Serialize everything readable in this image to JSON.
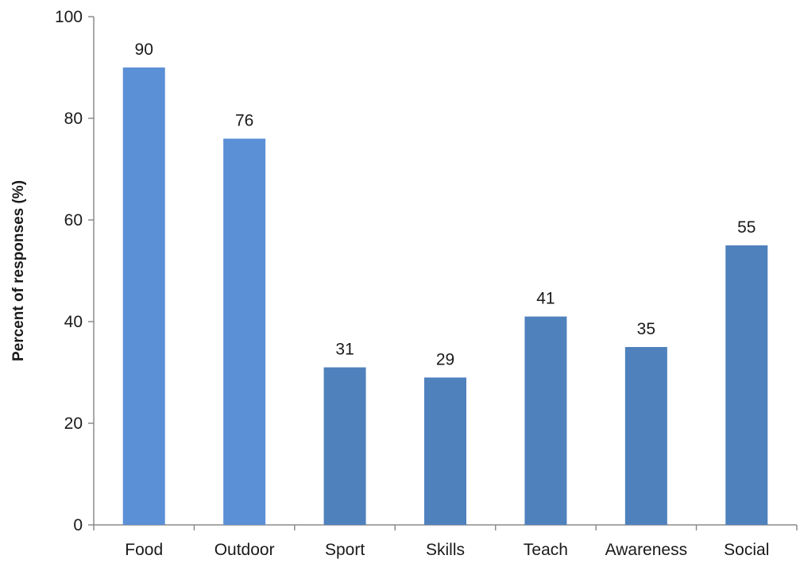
{
  "chart_data": {
    "type": "bar",
    "categories": [
      "Food",
      "Outdoor",
      "Sport",
      "Skills",
      "Teach",
      "Awareness",
      "Social"
    ],
    "values": [
      90,
      76,
      31,
      29,
      41,
      35,
      55
    ],
    "data_labels": [
      "90",
      "76",
      "31",
      "29",
      "41",
      "35",
      "55"
    ],
    "title": "",
    "xlabel": "",
    "ylabel": "Percent of responses (%)",
    "ylim": [
      0,
      100
    ],
    "yticks": [
      0,
      20,
      40,
      60,
      80,
      100
    ],
    "ytick_labels": [
      "0",
      "20",
      "40",
      "60",
      "80",
      "100"
    ],
    "grid": false,
    "legend": "none",
    "colors": {
      "bars_light": "#5b8fd6",
      "bars_dark": "#4f81bd",
      "axis": "#8c8c8c",
      "text": "#1a1a1a"
    }
  }
}
